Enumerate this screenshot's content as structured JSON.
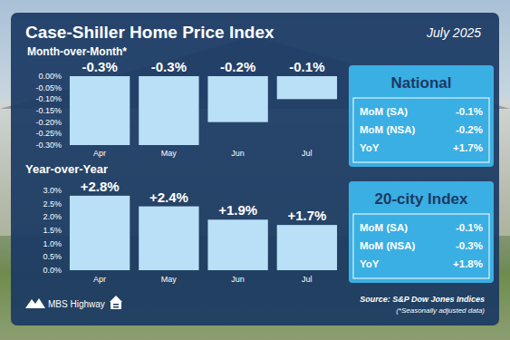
{
  "header": {
    "title": "Case-Shiller Home Price Index",
    "date": "July 2025"
  },
  "chart_data": [
    {
      "type": "bar",
      "title": "Month-over-Month*",
      "categories": [
        "Apr",
        "May",
        "Jun",
        "Jul"
      ],
      "values": [
        -0.3,
        -0.3,
        -0.2,
        -0.1
      ],
      "value_labels": [
        "-0.3%",
        "-0.3%",
        "-0.2%",
        "-0.1%"
      ],
      "color": "#b9e0f6",
      "ylim": [
        -0.3,
        0
      ],
      "yticks": [
        {
          "value": -0.3,
          "label": "-0.30%"
        },
        {
          "value": -0.25,
          "label": "-0.25%"
        },
        {
          "value": -0.2,
          "label": "-0.20%"
        },
        {
          "value": -0.15,
          "label": "-0.15%"
        },
        {
          "value": -0.1,
          "label": "-0.10%"
        },
        {
          "value": -0.05,
          "label": "-0.05%"
        },
        {
          "value": 0,
          "label": "0.00%"
        }
      ],
      "grid": false,
      "data_labels": true
    },
    {
      "type": "bar",
      "title": "Year-over-Year",
      "categories": [
        "Apr",
        "May",
        "Jun",
        "Jul"
      ],
      "values": [
        2.8,
        2.4,
        1.9,
        1.7
      ],
      "value_labels": [
        "+2.8%",
        "+2.4%",
        "+1.9%",
        "+1.7%"
      ],
      "color": "#b9e0f6",
      "ylim": [
        0,
        3
      ],
      "yticks": [
        {
          "value": 0,
          "label": "0.0%"
        },
        {
          "value": 0.5,
          "label": "0.5%"
        },
        {
          "value": 1,
          "label": "1.0%"
        },
        {
          "value": 1.5,
          "label": "1.5%"
        },
        {
          "value": 2,
          "label": "2.0%"
        },
        {
          "value": 2.5,
          "label": "2.5%"
        },
        {
          "value": 3,
          "label": "3.0%"
        }
      ],
      "grid": false,
      "data_labels": true
    }
  ],
  "panels": [
    {
      "title": "National",
      "rows": [
        {
          "label": "MoM (SA)",
          "value": "-0.1%"
        },
        {
          "label": "MoM (NSA)",
          "value": "-0.2%"
        },
        {
          "label": "YoY",
          "value": "+1.7%"
        }
      ]
    },
    {
      "title": "20-city Index",
      "rows": [
        {
          "label": "MoM (SA)",
          "value": "-0.1%"
        },
        {
          "label": "MoM (NSA)",
          "value": "-0.3%"
        },
        {
          "label": "YoY",
          "value": "+1.8%"
        }
      ]
    }
  ],
  "footer": {
    "logo": "MBS Highway",
    "source": "Source: S&P Dow Jones Indices",
    "note": "(*Seasonally adjusted data)"
  }
}
